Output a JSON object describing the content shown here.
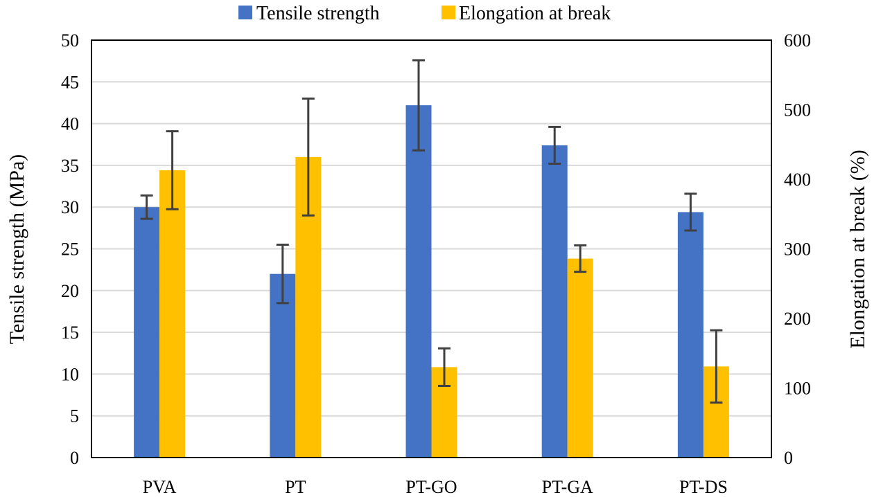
{
  "chart_data": {
    "type": "bar",
    "categories": [
      "PVA",
      "PT",
      "PT-GO",
      "PT-GA",
      "PT-DS"
    ],
    "series": [
      {
        "name": "Tensile strength",
        "axis": "left",
        "color": "#4472c4",
        "values": [
          30,
          22,
          42.2,
          37.4,
          29.4
        ],
        "error": [
          1.4,
          3.5,
          5.4,
          2.2,
          2.2
        ]
      },
      {
        "name": "Elongation at break",
        "axis": "right",
        "color": "#ffc000",
        "values": [
          413,
          432,
          130,
          286,
          131
        ],
        "error": [
          56,
          84,
          27,
          19,
          52
        ]
      }
    ],
    "ylabel": "Tensile strength (MPa)",
    "y2label": "Elongation at break (%)",
    "ylim": [
      0,
      50
    ],
    "y2lim": [
      0,
      600
    ],
    "yticks": [
      "0",
      "5",
      "10",
      "15",
      "20",
      "25",
      "30",
      "35",
      "40",
      "45",
      "50"
    ],
    "y2ticks": [
      "0",
      "100",
      "200",
      "300",
      "400",
      "500",
      "600"
    ],
    "legend_position": "top",
    "grid": true
  }
}
